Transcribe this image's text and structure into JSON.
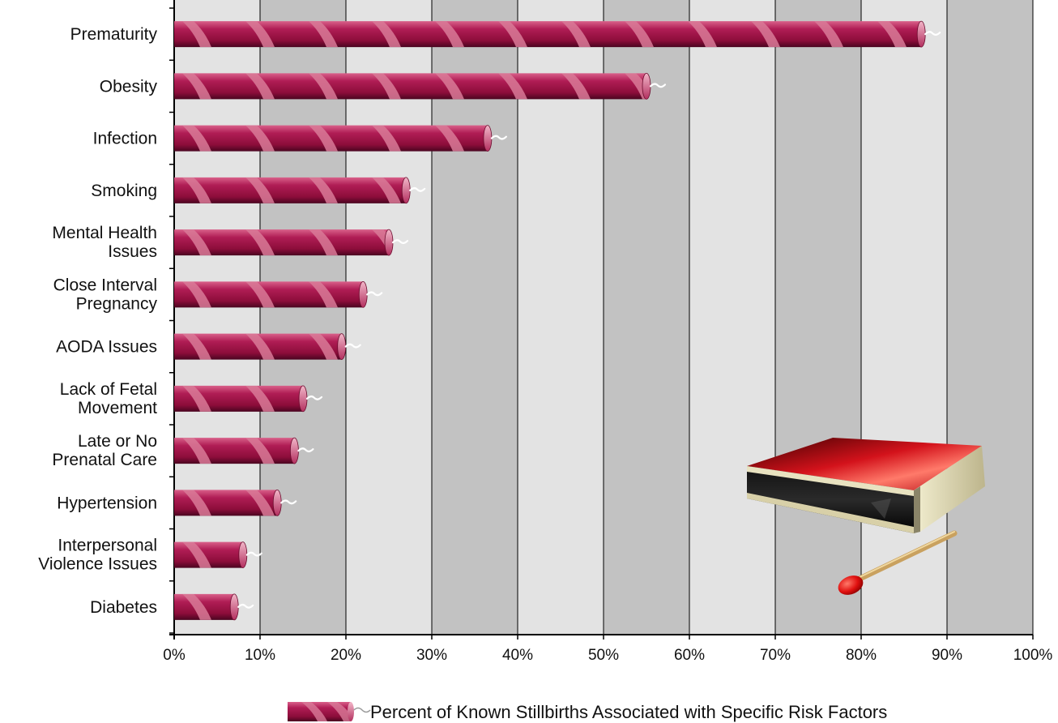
{
  "chart_data": {
    "type": "bar",
    "orientation": "horizontal",
    "categories": [
      "Prematurity",
      "Obesity",
      "Infection",
      "Smoking",
      "Mental Health Issues",
      "Close Interval Pregnancy",
      "AODA Issues",
      "Lack of Fetal Movement",
      "Late or No Prenatal Care",
      "Hypertension",
      "Interpersonal Violence Issues",
      "Diabetes"
    ],
    "category_lines": [
      [
        "Prematurity"
      ],
      [
        "Obesity"
      ],
      [
        "Infection"
      ],
      [
        "Smoking"
      ],
      [
        "Mental Health",
        "Issues"
      ],
      [
        "Close Interval",
        "Pregnancy"
      ],
      [
        "AODA Issues"
      ],
      [
        "Lack of Fetal",
        "Movement"
      ],
      [
        "Late or No",
        "Prenatal Care"
      ],
      [
        "Hypertension"
      ],
      [
        "Interpersonal",
        "Violence Issues"
      ],
      [
        "Diabetes"
      ]
    ],
    "series": [
      {
        "name": "Percent of Known Stillbirths Associated with Specific Risk Factors",
        "values": [
          87,
          55,
          36.5,
          27,
          25,
          22,
          19.5,
          15,
          14,
          12,
          8,
          7
        ]
      }
    ],
    "xlim": [
      0,
      100
    ],
    "x_ticks": [
      "0%",
      "10%",
      "20%",
      "30%",
      "40%",
      "50%",
      "60%",
      "70%",
      "80%",
      "90%",
      "100%"
    ],
    "grid": true,
    "legend_position": "bottom",
    "bar_color": "#a8154a",
    "stripe_color": "#d97a98",
    "band_colors": [
      "#e3e3e3",
      "#c2c2c2"
    ]
  },
  "decoration": {
    "illustration": "matchbox-and-match"
  }
}
